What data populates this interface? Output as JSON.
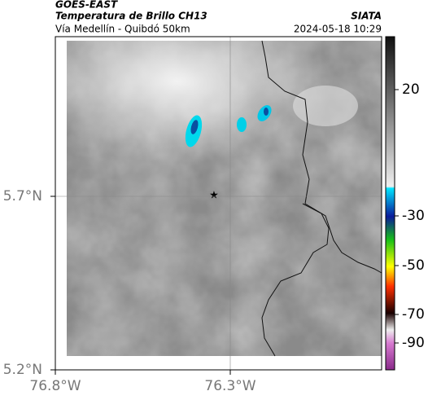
{
  "header": {
    "satellite": "GOES-EAST",
    "product": "Temperatura de Brillo CH13",
    "route": "Vía Medellín - Quibdó 50km",
    "source": "SIATA",
    "timestamp": "2024-05-18 10:29"
  },
  "map": {
    "lat_ticks": [
      {
        "value": 5.7,
        "label": "5.7°N"
      },
      {
        "value": 5.2,
        "label": "5.2°N"
      }
    ],
    "lon_ticks": [
      {
        "value": -76.8,
        "label": "76.8°W"
      },
      {
        "value": -76.3,
        "label": "76.3°W"
      }
    ]
  },
  "colorbar": {
    "ticks": [
      20,
      -30,
      -50,
      -70,
      -90
    ]
  }
}
